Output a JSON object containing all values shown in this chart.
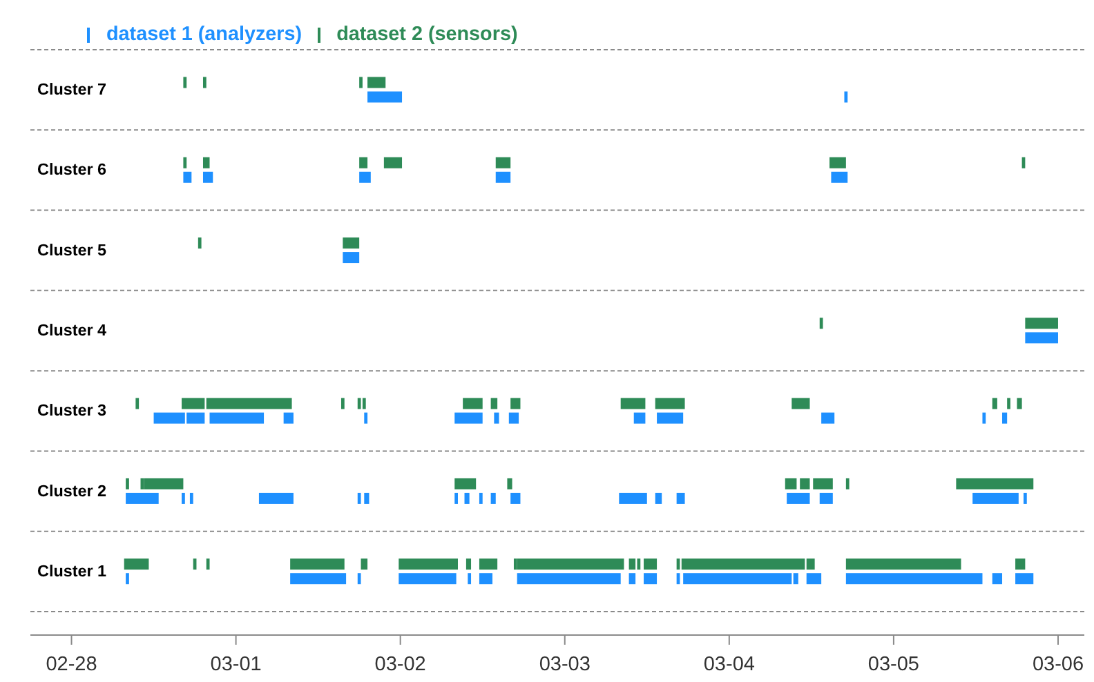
{
  "chart_data": {
    "type": "bar",
    "orientation": "horizontal",
    "categories": [
      "Cluster 7",
      "Cluster 6",
      "Cluster 5",
      "Cluster 4",
      "Cluster 3",
      "Cluster 2",
      "Cluster 1"
    ],
    "xlim": [
      "--02-27T18:00",
      "--03-06T03:50"
    ],
    "xticks": [
      {
        "value": "--02-28",
        "label": "02-28"
      },
      {
        "value": "--03-01",
        "label": "03-01"
      },
      {
        "value": "--03-02",
        "label": "03-02"
      },
      {
        "value": "--03-03",
        "label": "03-03"
      },
      {
        "value": "--03-04",
        "label": "03-04"
      },
      {
        "value": "--03-05",
        "label": "03-05"
      },
      {
        "value": "--03-06",
        "label": "03-06"
      }
    ],
    "grid": "y",
    "legend": "top left",
    "series": [
      {
        "color": "#2e8b57",
        "base": [
          11381.8,
          11381.8,
          11382.65,
          11386.8,
          11381.67,
          11381.42,
          11381.74
        ],
        "values": [
          0.02,
          0.04,
          0.1,
          0.2,
          0.14,
          0.02,
          0.02
        ]
      },
      {
        "name": "dataset 1 (analyzers)",
        "color": "#1e90ff",
        "base": [
          11382.8,
          11381.68,
          11382.65,
          11386.8,
          11381.5,
          11381.33,
          11381.33
        ],
        "values": [
          0.21,
          0.05,
          0.1,
          0.2,
          0.19,
          0.2,
          0.02
        ]
      },
      {
        "name": "dataset 2 (sensors)",
        "color": "#2e8b57",
        "base": [
          11381.68,
          11381.68,
          11381.77,
          11385.55,
          11381.39,
          11381.33,
          11381.32
        ],
        "values": [
          0.02,
          0.02,
          0.02,
          0.02,
          0.02,
          0.02,
          0.15
        ]
      },
      {
        "color": "#2e8b57",
        "base": [
          11382.75,
          11382.75,
          null,
          null,
          11381.82,
          11381.44,
          11381.82
        ],
        "values": [
          0.02,
          0.05,
          null,
          null,
          0.52,
          0.24,
          0.02
        ]
      },
      {
        "color": "#2e8b57",
        "base": [
          11382.8,
          11382.9,
          null,
          null,
          11382.64,
          11383.33,
          11382.33
        ],
        "values": [
          0.11,
          0.11,
          null,
          null,
          0.02,
          0.13,
          0.33
        ]
      },
      {
        "color": "#2e8b57",
        "base": [
          null,
          11383.58,
          null,
          null,
          11382.74,
          11383.65,
          11382.76
        ],
        "values": [
          null,
          0.09,
          null,
          null,
          0.02,
          0.03,
          0.04
        ]
      },
      {
        "color": "#2e8b57",
        "base": [
          null,
          11385.61,
          null,
          null,
          11382.77,
          11385.34,
          11382.99
        ],
        "values": [
          null,
          0.1,
          null,
          null,
          0.02,
          0.07,
          0.36
        ]
      },
      {
        "color": "#2e8b57",
        "base": [
          null,
          11386.78,
          null,
          null,
          11383.38,
          11385.43,
          11383.4
        ],
        "values": [
          null,
          0.02,
          null,
          null,
          0.12,
          0.06,
          0.03
        ]
      },
      {
        "color": "#2e8b57",
        "base": [
          null,
          null,
          null,
          null,
          11383.55,
          11385.51,
          11383.48
        ],
        "values": [
          null,
          null,
          null,
          null,
          0.04,
          0.12,
          0.11
        ]
      },
      {
        "color": "#2e8b57",
        "base": [
          null,
          null,
          null,
          null,
          11383.67,
          11385.71,
          11383.69
        ],
        "values": [
          null,
          null,
          null,
          null,
          0.06,
          0.02,
          0.02
        ]
      },
      {
        "color": "#2e8b57",
        "base": [
          null,
          null,
          null,
          null,
          11384.34,
          11386.38,
          11383.71
        ],
        "values": [
          null,
          null,
          null,
          null,
          0.15,
          0.47,
          0.65
        ]
      },
      {
        "color": "#2e8b57",
        "base": [
          null,
          null,
          null,
          null,
          11384.55,
          null,
          11384.39
        ],
        "values": [
          null,
          null,
          null,
          null,
          0.18,
          null,
          0.04
        ]
      },
      {
        "color": "#2e8b57",
        "base": [
          null,
          null,
          null,
          null,
          11385.38,
          null,
          11384.44
        ],
        "values": [
          null,
          null,
          null,
          null,
          0.11,
          null,
          0.02
        ]
      },
      {
        "color": "#2e8b57",
        "base": [
          null,
          null,
          null,
          null,
          11386.6,
          null,
          11384.48
        ],
        "values": [
          null,
          null,
          null,
          null,
          0.03,
          null,
          0.08
        ]
      },
      {
        "color": "#2e8b57",
        "base": [
          null,
          null,
          null,
          null,
          11386.69,
          null,
          11384.68
        ],
        "values": [
          null,
          null,
          null,
          null,
          0.02,
          null,
          0.02
        ]
      },
      {
        "color": "#2e8b57",
        "base": [
          null,
          null,
          null,
          null,
          11386.75,
          null,
          11384.71
        ],
        "values": [
          null,
          null,
          null,
          null,
          0.03,
          null,
          0.75
        ]
      },
      {
        "color": "#2e8b57",
        "base": [
          null,
          null,
          null,
          null,
          null,
          null,
          11385.47
        ],
        "values": [
          null,
          null,
          null,
          null,
          null,
          null,
          0.05
        ]
      },
      {
        "color": "#2e8b57",
        "base": [
          null,
          null,
          null,
          null,
          null,
          null,
          11385.71
        ],
        "values": [
          null,
          null,
          null,
          null,
          null,
          null,
          0.7
        ]
      },
      {
        "color": "#2e8b57",
        "base": [
          null,
          null,
          null,
          null,
          null,
          null,
          11386.74
        ],
        "values": [
          null,
          null,
          null,
          null,
          null,
          null,
          0.06
        ]
      },
      {
        "color": "#1e90ff",
        "base": [
          11385.7,
          11381.8,
          null,
          null,
          11381.7,
          11381.67,
          11382.33
        ],
        "values": [
          0.02,
          0.06,
          null,
          null,
          0.11,
          0.02,
          0.34
        ]
      },
      {
        "color": "#1e90ff",
        "base": [
          null,
          11382.75,
          null,
          null,
          11381.84,
          11381.72,
          11382.74
        ],
        "values": [
          null,
          0.07,
          null,
          null,
          0.33,
          0.02,
          0.02
        ]
      },
      {
        "color": "#1e90ff",
        "base": [
          null,
          11383.58,
          null,
          null,
          11382.29,
          11382.14,
          11382.99
        ],
        "values": [
          null,
          0.09,
          null,
          null,
          0.06,
          0.21,
          0.35
        ]
      },
      {
        "color": "#1e90ff",
        "base": [
          null,
          11385.62,
          null,
          null,
          11382.78,
          11382.74,
          11383.41
        ],
        "values": [
          null,
          0.1,
          null,
          null,
          0.02,
          0.02,
          0.02
        ]
      },
      {
        "color": "#1e90ff",
        "base": [
          null,
          null,
          null,
          null,
          11383.33,
          11382.78,
          11383.48
        ],
        "values": [
          null,
          null,
          null,
          null,
          0.17,
          0.03,
          0.08
        ]
      },
      {
        "color": "#1e90ff",
        "base": [
          null,
          null,
          null,
          null,
          11383.57,
          11383.33,
          11383.71
        ],
        "values": [
          null,
          null,
          null,
          null,
          0.03,
          0.02,
          0.63
        ]
      },
      {
        "color": "#1e90ff",
        "base": [
          null,
          null,
          null,
          null,
          11383.66,
          11383.39,
          11384.39
        ],
        "values": [
          null,
          null,
          null,
          null,
          0.06,
          0.03,
          0.04
        ]
      },
      {
        "color": "#1e90ff",
        "base": [
          null,
          null,
          null,
          null,
          11384.42,
          11383.48,
          11384.48
        ],
        "values": [
          null,
          null,
          null,
          null,
          0.07,
          0.02,
          0.08
        ]
      },
      {
        "color": "#1e90ff",
        "base": [
          null,
          null,
          null,
          null,
          11384.56,
          11383.55,
          11384.68
        ],
        "values": [
          null,
          null,
          null,
          null,
          0.16,
          0.03,
          0.02
        ]
      },
      {
        "color": "#1e90ff",
        "base": [
          null,
          null,
          null,
          null,
          11385.56,
          11383.67,
          11384.72
        ],
        "values": [
          null,
          null,
          null,
          null,
          0.08,
          0.06,
          0.66
        ]
      },
      {
        "color": "#1e90ff",
        "base": [
          null,
          null,
          null,
          null,
          11386.54,
          11384.33,
          11385.39
        ],
        "values": [
          null,
          null,
          null,
          null,
          0.02,
          0.17,
          0.03
        ]
      },
      {
        "color": "#1e90ff",
        "base": [
          null,
          null,
          null,
          null,
          11386.66,
          11384.55,
          11385.47
        ],
        "values": [
          null,
          null,
          null,
          null,
          0.03,
          0.04,
          0.09
        ]
      },
      {
        "color": "#1e90ff",
        "base": [
          null,
          null,
          null,
          null,
          null,
          11384.68,
          11385.71
        ],
        "values": [
          null,
          null,
          null,
          null,
          null,
          0.05,
          0.83
        ]
      },
      {
        "color": "#1e90ff",
        "base": [
          null,
          null,
          null,
          null,
          null,
          11385.35,
          11386.6
        ],
        "values": [
          null,
          null,
          null,
          null,
          null,
          0.14,
          0.06
        ]
      },
      {
        "color": "#1e90ff",
        "base": [
          null,
          null,
          null,
          null,
          null,
          11385.55,
          11386.74
        ],
        "values": [
          null,
          null,
          null,
          null,
          null,
          0.08,
          0.11
        ]
      },
      {
        "color": "#1e90ff",
        "base": [
          null,
          null,
          null,
          null,
          null,
          11386.48,
          null
        ],
        "values": [
          null,
          null,
          null,
          null,
          null,
          0.28,
          null
        ]
      },
      {
        "color": "#1e90ff",
        "base": [
          null,
          null,
          null,
          null,
          null,
          11386.79,
          null
        ],
        "values": [
          null,
          null,
          null,
          null,
          null,
          0.02,
          null
        ]
      }
    ]
  }
}
